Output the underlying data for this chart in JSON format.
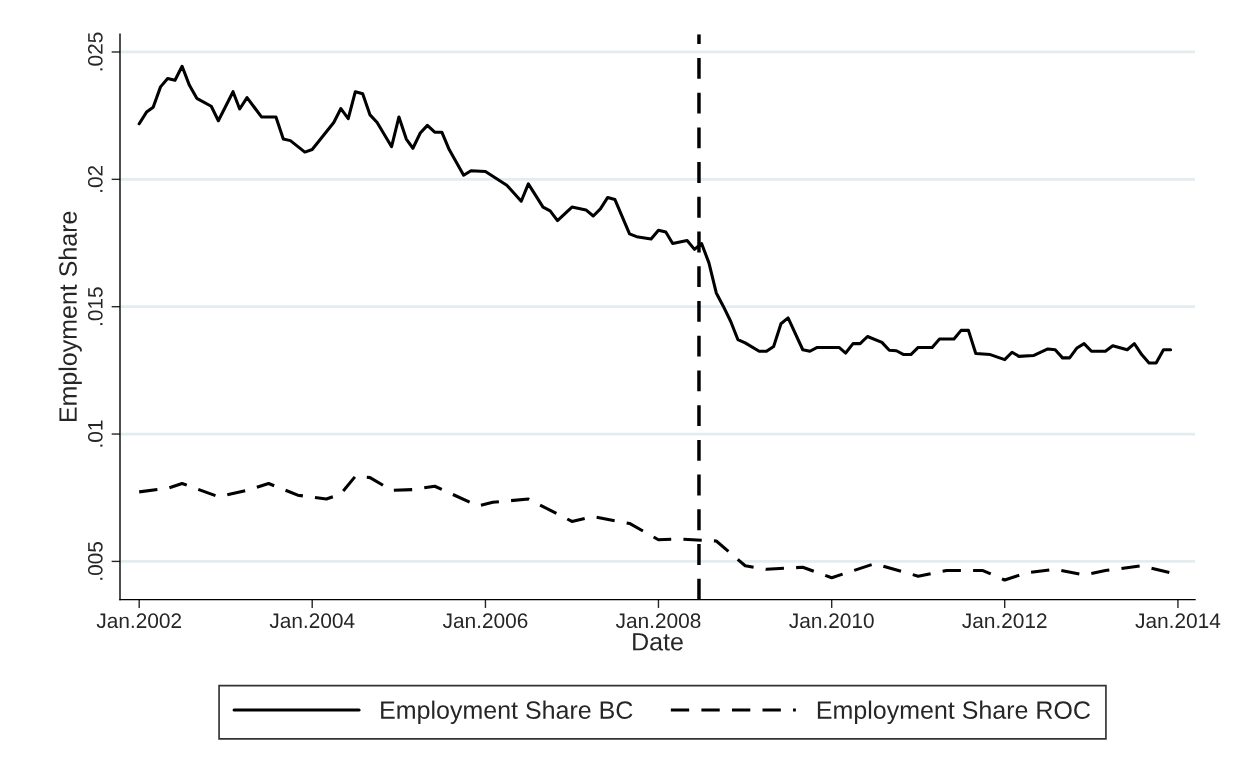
{
  "chart_data": {
    "type": "line",
    "xlabel": "Date",
    "ylabel": "Employment Share",
    "xlim": [
      "2001-10-12",
      "2014-03-14"
    ],
    "ylim": [
      0.0035,
      0.0257
    ],
    "xticks": [
      {
        "value": "2002-01",
        "label": "Jan.2002"
      },
      {
        "value": "2004-01",
        "label": "Jan.2004"
      },
      {
        "value": "2006-01",
        "label": "Jan.2006"
      },
      {
        "value": "2008-01",
        "label": "Jan.2008"
      },
      {
        "value": "2010-01",
        "label": "Jan.2010"
      },
      {
        "value": "2012-01",
        "label": "Jan.2012"
      },
      {
        "value": "2014-01",
        "label": "Jan.2014"
      }
    ],
    "yticks": [
      {
        "value": 0.005,
        "label": ".005"
      },
      {
        "value": 0.01,
        "label": ".01"
      },
      {
        "value": 0.015,
        "label": ".015"
      },
      {
        "value": 0.02,
        "label": ".02"
      },
      {
        "value": 0.025,
        "label": ".025"
      }
    ],
    "grid": "y",
    "legend": "bottom",
    "marker": "none",
    "ref_lines": [
      {
        "axis": "x",
        "value": "2008-06-20",
        "color": "#000000",
        "line_style": "dashed"
      }
    ],
    "series": [
      {
        "name": "Employment Share BC",
        "color": "#000000",
        "line_style": "solid",
        "x": [
          "2002-01",
          "2002-02",
          "2002-03",
          "2002-04",
          "2002-05",
          "2002-06",
          "2002-07",
          "2002-08",
          "2002-09",
          "2002-11",
          "2002-12",
          "2003-02",
          "2003-03",
          "2003-04",
          "2003-06",
          "2003-08",
          "2003-09",
          "2003-10",
          "2003-12",
          "2004-01",
          "2004-04",
          "2004-05",
          "2004-06",
          "2004-07",
          "2004-08",
          "2004-09",
          "2004-10",
          "2004-12",
          "2005-01",
          "2005-02",
          "2005-03",
          "2005-04",
          "2005-05",
          "2005-06",
          "2005-07",
          "2005-08",
          "2005-10",
          "2005-11",
          "2006-01",
          "2006-04",
          "2006-06",
          "2006-07",
          "2006-09",
          "2006-10",
          "2006-11",
          "2007-01",
          "2007-03",
          "2007-04",
          "2007-05",
          "2007-06",
          "2007-07",
          "2007-09",
          "2007-10",
          "2007-12",
          "2008-01",
          "2008-02",
          "2008-03",
          "2008-05",
          "2008-06",
          "2008-07",
          "2008-08",
          "2008-09",
          "2008-10",
          "2008-11",
          "2008-12",
          "2009-01",
          "2009-03",
          "2009-04",
          "2009-05",
          "2009-06",
          "2009-07",
          "2009-09",
          "2009-10",
          "2009-11",
          "2010-02",
          "2010-03",
          "2010-04",
          "2010-05",
          "2010-06",
          "2010-08",
          "2010-09",
          "2010-10",
          "2010-11",
          "2010-12",
          "2011-01",
          "2011-03",
          "2011-04",
          "2011-06",
          "2011-07",
          "2011-08",
          "2011-09",
          "2011-11",
          "2012-01",
          "2012-02",
          "2012-03",
          "2012-05",
          "2012-07",
          "2012-08",
          "2012-09",
          "2012-10",
          "2012-11",
          "2012-12",
          "2013-01",
          "2013-03",
          "2013-04",
          "2013-06",
          "2013-07",
          "2013-08",
          "2013-09",
          "2013-10",
          "2013-11",
          "2013-12"
        ],
        "values": [
          0.02218,
          0.02264,
          0.02283,
          0.02363,
          0.02396,
          0.02389,
          0.02444,
          0.02369,
          0.02318,
          0.02287,
          0.0223,
          0.02344,
          0.02276,
          0.02321,
          0.02245,
          0.02245,
          0.02158,
          0.02152,
          0.02107,
          0.02117,
          0.02223,
          0.02278,
          0.02238,
          0.02344,
          0.02336,
          0.02253,
          0.02223,
          0.02128,
          0.02245,
          0.02158,
          0.02122,
          0.02182,
          0.02212,
          0.02185,
          0.02185,
          0.02117,
          0.02016,
          0.02034,
          0.02031,
          0.01977,
          0.01914,
          0.01982,
          0.01891,
          0.01876,
          0.01838,
          0.01891,
          0.0188,
          0.01856,
          0.01884,
          0.01929,
          0.01921,
          0.01786,
          0.01775,
          0.01766,
          0.018,
          0.01793,
          0.01748,
          0.0176,
          0.01725,
          0.01748,
          0.01672,
          0.01554,
          0.01501,
          0.01442,
          0.01371,
          0.01358,
          0.01325,
          0.01325,
          0.01344,
          0.01433,
          0.01456,
          0.01331,
          0.01325,
          0.0134,
          0.0134,
          0.01318,
          0.01355,
          0.01355,
          0.01383,
          0.0136,
          0.01329,
          0.01327,
          0.01312,
          0.01312,
          0.0134,
          0.0134,
          0.01373,
          0.01373,
          0.01407,
          0.01407,
          0.01316,
          0.01312,
          0.01292,
          0.01321,
          0.01305,
          0.01308,
          0.01334,
          0.01331,
          0.01299,
          0.01299,
          0.01338,
          0.01355,
          0.01325,
          0.01325,
          0.01347,
          0.01331,
          0.01355,
          0.01312,
          0.01279,
          0.01279,
          0.01331,
          0.01331
        ]
      },
      {
        "name": "Employment Share ROC",
        "color": "#000000",
        "line_style": "dashed",
        "x": [
          "2002-01",
          "2002-05",
          "2002-07",
          "2002-12",
          "2003-04",
          "2003-07",
          "2003-11",
          "2004-03",
          "2004-05",
          "2004-07",
          "2004-09",
          "2004-12",
          "2005-03",
          "2005-06",
          "2005-12",
          "2006-02",
          "2006-07",
          "2007-01",
          "2007-04",
          "2007-09",
          "2008-01",
          "2008-04",
          "2008-09",
          "2009-01",
          "2009-04",
          "2009-09",
          "2010-01",
          "2010-07",
          "2011-01",
          "2011-05",
          "2011-10",
          "2012-01",
          "2012-04",
          "2012-08",
          "2012-12",
          "2013-03",
          "2013-08",
          "2013-12"
        ],
        "values": [
          0.00773,
          0.00787,
          0.00806,
          0.00754,
          0.00779,
          0.00806,
          0.0076,
          0.00745,
          0.00765,
          0.00834,
          0.00829,
          0.00779,
          0.00782,
          0.00795,
          0.00718,
          0.00732,
          0.00745,
          0.00657,
          0.00676,
          0.00649,
          0.00585,
          0.00588,
          0.0058,
          0.00483,
          0.00469,
          0.00477,
          0.00436,
          0.00491,
          0.00442,
          0.00464,
          0.00464,
          0.00427,
          0.00455,
          0.00469,
          0.00447,
          0.00464,
          0.00483,
          0.00455
        ]
      }
    ]
  }
}
